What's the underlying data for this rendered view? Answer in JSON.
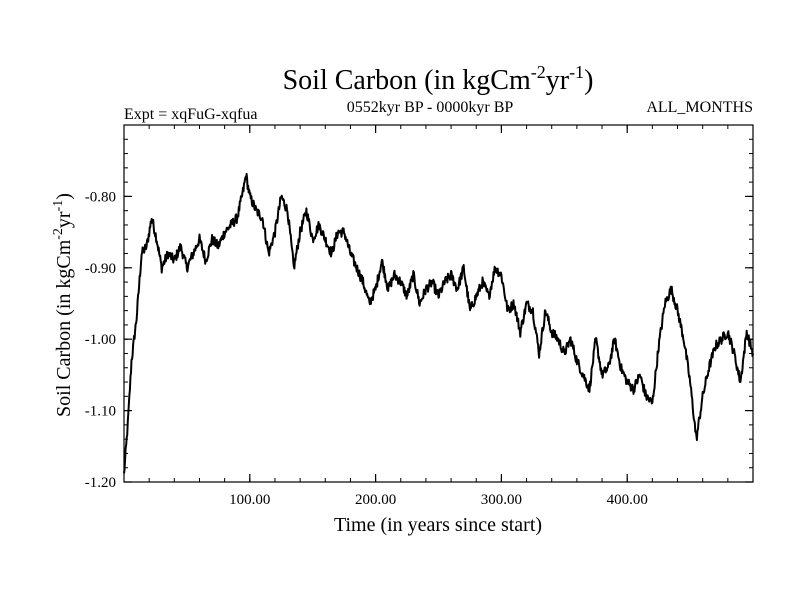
{
  "chart_data": {
    "type": "line",
    "title_main": "Soil Carbon (in kgCm",
    "title_sup1": "-2",
    "title_mid": "yr",
    "title_sup2": "-1",
    "title_end": ")",
    "subtitle_left": "Expt = xqFuG-xqfua",
    "subtitle_center": "0552kyr BP - 0000kyr BP",
    "subtitle_right": "ALL_MONTHS",
    "xlabel": "Time (in years since start)",
    "ylabel_main": "Soil Carbon (in kgCm",
    "ylabel_sup1": "-2",
    "ylabel_mid": "yr",
    "ylabel_sup2": "-1",
    "ylabel_end": ")",
    "xlim": [
      0,
      500
    ],
    "ylim": [
      -1.2,
      -0.7
    ],
    "x_ticks": [
      100,
      200,
      300,
      400
    ],
    "x_tick_labels": [
      "100.00",
      "200.00",
      "300.00",
      "400.00"
    ],
    "y_ticks": [
      -1.2,
      -1.1,
      -1.0,
      -0.9,
      -0.8
    ],
    "y_tick_labels": [
      "-1.20",
      "-1.10",
      "-1.00",
      "-0.90",
      "-0.80"
    ],
    "series": [
      {
        "name": "Soil Carbon",
        "x": [
          0,
          3,
          6,
          10,
          14,
          18,
          22,
          26,
          30,
          35,
          40,
          45,
          50,
          55,
          60,
          65,
          70,
          75,
          80,
          85,
          90,
          95,
          97,
          100,
          105,
          110,
          115,
          120,
          125,
          130,
          135,
          140,
          145,
          150,
          155,
          160,
          165,
          170,
          175,
          180,
          185,
          190,
          195,
          200,
          205,
          210,
          215,
          220,
          225,
          230,
          235,
          240,
          245,
          250,
          255,
          260,
          265,
          270,
          275,
          280,
          285,
          290,
          295,
          300,
          305,
          310,
          315,
          320,
          325,
          330,
          335,
          340,
          345,
          350,
          355,
          360,
          365,
          370,
          375,
          380,
          385,
          390,
          395,
          400,
          405,
          410,
          415,
          420,
          425,
          430,
          435,
          440,
          445,
          450,
          455,
          460,
          465,
          470,
          475,
          480,
          485,
          490,
          495,
          500
        ],
        "y": [
          -1.19,
          -1.12,
          -1.03,
          -0.97,
          -0.88,
          -0.87,
          -0.83,
          -0.86,
          -0.9,
          -0.88,
          -0.89,
          -0.87,
          -0.9,
          -0.88,
          -0.86,
          -0.89,
          -0.86,
          -0.87,
          -0.85,
          -0.84,
          -0.83,
          -0.79,
          -0.77,
          -0.8,
          -0.82,
          -0.83,
          -0.88,
          -0.85,
          -0.8,
          -0.82,
          -0.9,
          -0.85,
          -0.82,
          -0.86,
          -0.84,
          -0.86,
          -0.88,
          -0.85,
          -0.85,
          -0.88,
          -0.9,
          -0.92,
          -0.95,
          -0.93,
          -0.89,
          -0.93,
          -0.91,
          -0.92,
          -0.94,
          -0.91,
          -0.95,
          -0.93,
          -0.92,
          -0.94,
          -0.92,
          -0.91,
          -0.93,
          -0.9,
          -0.96,
          -0.94,
          -0.92,
          -0.94,
          -0.9,
          -0.91,
          -0.96,
          -0.95,
          -0.99,
          -0.95,
          -0.96,
          -1.02,
          -0.96,
          -0.99,
          -1.0,
          -1.02,
          -1.0,
          -1.03,
          -1.05,
          -1.07,
          -1.0,
          -1.05,
          -1.04,
          -1.0,
          -1.04,
          -1.06,
          -1.07,
          -1.05,
          -1.08,
          -1.09,
          -1.01,
          -0.95,
          -0.93,
          -0.96,
          -1.0,
          -1.06,
          -1.14,
          -1.08,
          -1.04,
          -1.01,
          -1.0,
          -0.99,
          -1.02,
          -1.06,
          -0.99,
          -1.02
        ]
      }
    ]
  }
}
